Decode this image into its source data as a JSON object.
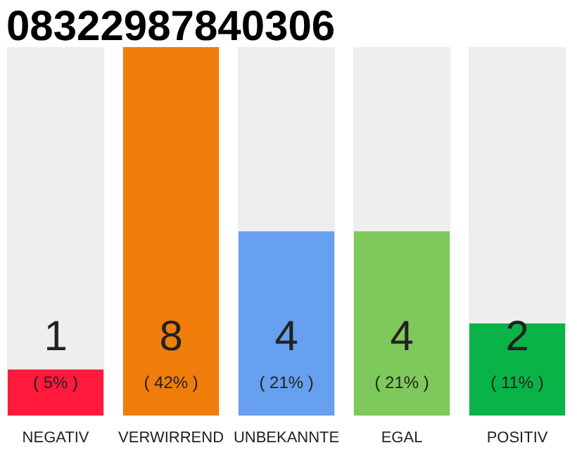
{
  "chart_data": {
    "type": "bar",
    "title": "08322987840306",
    "categories": [
      "NEGATIV",
      "VERWIRREND",
      "UNBEKANNTE",
      "EGAL",
      "POSITIV"
    ],
    "values": [
      1,
      8,
      4,
      4,
      2
    ],
    "colors": [
      "#ff1a3c",
      "#f07d0a",
      "#66a0ee",
      "#7ec95c",
      "#0ab347"
    ],
    "data_labels": true,
    "annotations": [
      "( 5% )",
      "( 42% )",
      "( 21% )",
      "( 21% )",
      "( 11% )"
    ],
    "grid": false
  }
}
